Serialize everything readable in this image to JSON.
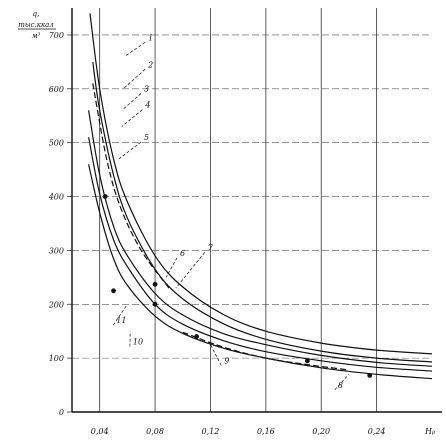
{
  "chart_data": {
    "type": "line",
    "title": "",
    "ylabel": [
      "q,",
      "тыс.ккал",
      "м³"
    ],
    "xlabel": "Hᵦ",
    "xlim": [
      0.02,
      0.28
    ],
    "ylim": [
      0,
      750
    ],
    "y_ticks": [
      0,
      100,
      200,
      300,
      400,
      500,
      600,
      700
    ],
    "y_tick_labels": [
      "0",
      "100",
      "200",
      "300",
      "400",
      "500",
      "600",
      "700"
    ],
    "x_ticks": [
      0.04,
      0.08,
      0.12,
      0.16,
      0.2,
      0.24
    ],
    "x_tick_labels": [
      "0,04",
      "0,08",
      "0,12",
      "0,16",
      "0,20",
      "0,24"
    ],
    "grid": true,
    "series": [
      {
        "name": "1",
        "x": [
          0.033,
          0.04,
          0.05,
          0.06,
          0.08,
          0.1,
          0.13,
          0.16,
          0.2,
          0.24,
          0.28
        ],
        "y": [
          740,
          600,
          470,
          390,
          290,
          232,
          180,
          150,
          128,
          115,
          108
        ]
      },
      {
        "name": "2",
        "x": [
          0.035,
          0.04,
          0.05,
          0.06,
          0.08,
          0.1,
          0.13,
          0.16,
          0.2,
          0.24,
          0.28
        ],
        "y": [
          650,
          560,
          440,
          360,
          265,
          210,
          163,
          135,
          113,
          100,
          93
        ]
      },
      {
        "name": "3",
        "x": [
          0.032,
          0.04,
          0.05,
          0.06,
          0.08,
          0.1,
          0.13,
          0.16,
          0.2,
          0.24,
          0.28
        ],
        "y": [
          560,
          440,
          345,
          290,
          220,
          180,
          145,
          125,
          105,
          92,
          85
        ]
      },
      {
        "name": "4",
        "x": [
          0.032,
          0.04,
          0.05,
          0.06,
          0.08,
          0.1,
          0.13,
          0.16,
          0.2,
          0.24,
          0.28
        ],
        "y": [
          510,
          405,
          320,
          270,
          200,
          163,
          132,
          112,
          95,
          83,
          76
        ]
      },
      {
        "name": "5",
        "x": [
          0.032,
          0.04,
          0.05,
          0.06,
          0.08,
          0.1,
          0.13,
          0.16,
          0.2,
          0.24,
          0.28
        ],
        "y": [
          460,
          370,
          285,
          235,
          178,
          146,
          118,
          100,
          82,
          70,
          62
        ]
      }
    ],
    "labels": [
      "1",
      "2",
      "3",
      "4",
      "5",
      "6",
      "7",
      "8",
      "9",
      "10",
      "11"
    ]
  }
}
